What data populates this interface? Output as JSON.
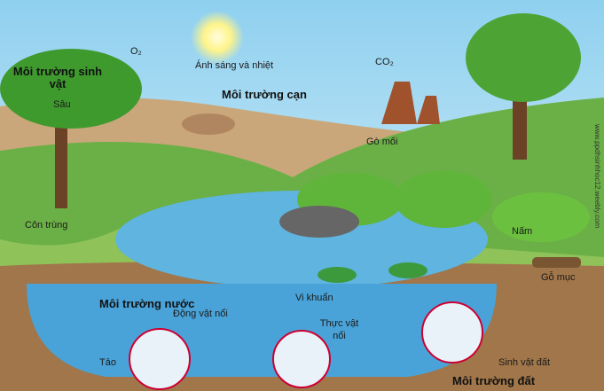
{
  "labels": {
    "oxygen": "O₂",
    "light": "Ánh sáng và nhiệt",
    "carbon_dioxide": "CO₂",
    "biotic_environment": "Môi trường sinh vật",
    "caterpillar": "Sâu",
    "land_environment": "Môi trường cạn",
    "termite_mound": "Gò mối",
    "insect": "Côn trùng",
    "fungus": "Nấm",
    "rotten_wood": "Gỗ mục",
    "water_environment": "Môi trường nước",
    "zooplankton": "Động vật nổi",
    "bacteria": "Vi khuẩn",
    "phytoplankton": "Thực vật nổi",
    "algae": "Tảo",
    "soil_organisms": "Sinh vật đất",
    "soil_environment": "Môi trường đất",
    "watermark": "www.ppdhsinhhoc12.weebly.com"
  }
}
